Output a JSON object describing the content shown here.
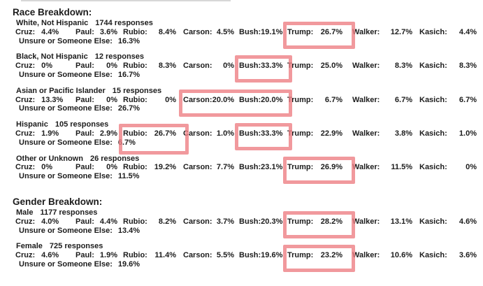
{
  "document": {
    "text_color": "#1c1c1c",
    "highlight_color": "#ee7f85"
  },
  "candidates": [
    "Cruz:",
    "Paul:",
    "Rubio:",
    "Carson:",
    "Bush:",
    "Trump:",
    "Walker:",
    "Kasich:"
  ],
  "unsure_label": "Unsure or Someone Else:",
  "sections": [
    {
      "title": "Race Breakdown:",
      "groups": [
        {
          "name": "White, Not Hispanic",
          "responses": "1744 responses",
          "values": [
            "4.4%",
            "3.6%",
            "8.4%",
            "4.5%",
            "19.1%",
            "26.7%",
            "12.7%",
            "4.4%"
          ],
          "unsure": "16.3%",
          "highlights": [
            {
              "from": 5,
              "to": 5,
              "tall": false
            }
          ]
        },
        {
          "name": "Black, Not Hispanic",
          "responses": "12 responses",
          "values": [
            "0%",
            "0%",
            "8.3%",
            "0%",
            "33.3%",
            "25.0%",
            "8.3%",
            "8.3%"
          ],
          "unsure": "16.7%",
          "highlights": [
            {
              "from": 4,
              "to": 4,
              "tall": false
            }
          ]
        },
        {
          "name": "Asian or Pacific Islander",
          "responses": "15 responses",
          "values": [
            "13.3%",
            "0%",
            "0%",
            "20.0%",
            "20.0%",
            "6.7%",
            "6.7%",
            "6.7%"
          ],
          "unsure": "26.7%",
          "highlights": [
            {
              "from": 3,
              "to": 4,
              "tall": false
            }
          ]
        },
        {
          "name": "Hispanic",
          "responses": "105 responses",
          "values": [
            "1.9%",
            "2.9%",
            "26.7%",
            "1.0%",
            "33.3%",
            "22.9%",
            "3.8%",
            "1.0%"
          ],
          "unsure": "6.7%",
          "highlights": [
            {
              "from": 2,
              "to": 2,
              "tall": true
            },
            {
              "from": 4,
              "to": 4,
              "tall": false
            }
          ]
        },
        {
          "name": "Other or Unknown",
          "responses": "26 responses",
          "values": [
            "0%",
            "0%",
            "19.2%",
            "7.7%",
            "23.1%",
            "26.9%",
            "11.5%",
            "0%"
          ],
          "unsure": "11.5%",
          "highlights": [
            {
              "from": 5,
              "to": 5,
              "tall": false
            }
          ]
        }
      ]
    },
    {
      "title": "Gender Breakdown:",
      "groups": [
        {
          "name": "Male",
          "responses": "1177 responses",
          "values": [
            "4.0%",
            "4.4%",
            "8.2%",
            "3.7%",
            "20.3%",
            "28.2%",
            "13.1%",
            "4.6%"
          ],
          "unsure": "13.4%",
          "highlights": [
            {
              "from": 5,
              "to": 5,
              "tall": false
            }
          ]
        },
        {
          "name": "Female",
          "responses": "725 responses",
          "values": [
            "4.6%",
            "1.9%",
            "11.4%",
            "5.5%",
            "19.6%",
            "23.2%",
            "10.6%",
            "3.6%"
          ],
          "unsure": "19.6%",
          "highlights": [
            {
              "from": 5,
              "to": 5,
              "tall": false
            }
          ]
        }
      ]
    }
  ]
}
